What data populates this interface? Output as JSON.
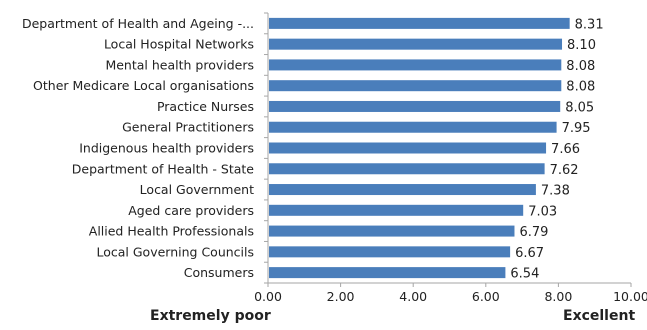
{
  "chart_data": {
    "type": "bar",
    "orientation": "horizontal",
    "categories": [
      "Department of Health and Ageing -...",
      "Local Hospital Networks",
      "Mental health providers",
      "Other Medicare Local organisations",
      "Practice Nurses",
      "General Practitioners",
      "Indigenous health providers",
      "Department of Health - State",
      "Local Government",
      "Aged care providers",
      "Allied Health Professionals",
      "Local Governing Councils",
      "Consumers"
    ],
    "values": [
      8.31,
      8.1,
      8.08,
      8.08,
      8.05,
      7.95,
      7.66,
      7.62,
      7.38,
      7.03,
      6.79,
      6.67,
      6.54
    ],
    "value_labels": [
      "8.31",
      "8.10",
      "8.08",
      "8.08",
      "8.05",
      "7.95",
      "7.66",
      "7.62",
      "7.38",
      "7.03",
      "6.79",
      "6.67",
      "6.54"
    ],
    "xticks": [
      "0.00",
      "2.00",
      "4.00",
      "6.00",
      "8.00",
      "10.00"
    ],
    "xlim": [
      0,
      10
    ],
    "x_end_labels": {
      "left": "Extremely poor",
      "right": "Excellent"
    },
    "bar_color": "#4a7ebb",
    "grid": false,
    "legend": "none"
  }
}
